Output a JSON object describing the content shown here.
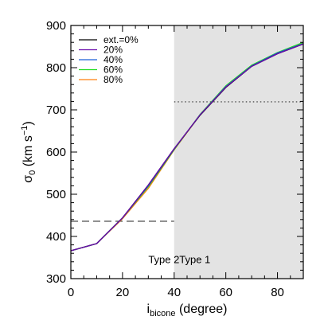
{
  "chart_data": {
    "type": "line",
    "xlabel": {
      "main": "i",
      "sub": "bicone",
      "rest": " (degree)"
    },
    "ylabel": {
      "main": "σ",
      "sub": "0",
      "rest": " (km s",
      "sup": "−1",
      "close": ")"
    },
    "xlim": [
      0,
      90
    ],
    "ylim": [
      300,
      900
    ],
    "xticks": [
      0,
      20,
      40,
      60,
      80
    ],
    "yticks": [
      300,
      400,
      500,
      600,
      700,
      800,
      900
    ],
    "grid": false,
    "legend_position": "top-left",
    "shaded_region": {
      "x_from": 40,
      "x_to": 90,
      "color": "#e3e3e3"
    },
    "reference_lines": [
      {
        "name": "type2-reference",
        "style": "dashed",
        "y": 436,
        "x_from": 0,
        "x_to": 40
      },
      {
        "name": "type1-reference",
        "style": "dotted",
        "y": 719,
        "x_from": 40,
        "x_to": 90
      }
    ],
    "region_labels": [
      {
        "text": "Type 2",
        "x": 30,
        "y": 337
      },
      {
        "text": "Type 1",
        "x": 42,
        "y": 337
      }
    ],
    "x": [
      0,
      10,
      20,
      30,
      40,
      50,
      60,
      70,
      80,
      90
    ],
    "series": [
      {
        "name": "ext.=0%",
        "color": "#000000",
        "values": [
          366,
          383,
          444,
          522,
          608,
          687,
          753,
          803,
          833,
          856
        ]
      },
      {
        "name": "20%",
        "color": "#6a0dad",
        "values": [
          366,
          383,
          444,
          522,
          608,
          688,
          754,
          803,
          833,
          856
        ]
      },
      {
        "name": "40%",
        "color": "#1f5fd6",
        "values": [
          366,
          383,
          444,
          520,
          607,
          688,
          755,
          804,
          835,
          857
        ]
      },
      {
        "name": "60%",
        "color": "#22dd22",
        "values": [
          366,
          383,
          444,
          518,
          606,
          689,
          757,
          806,
          836,
          860
        ]
      },
      {
        "name": "80%",
        "color": "#ff7f0e",
        "values": [
          366,
          383,
          442,
          514,
          605,
          688,
          755,
          805,
          835,
          858
        ]
      }
    ]
  }
}
